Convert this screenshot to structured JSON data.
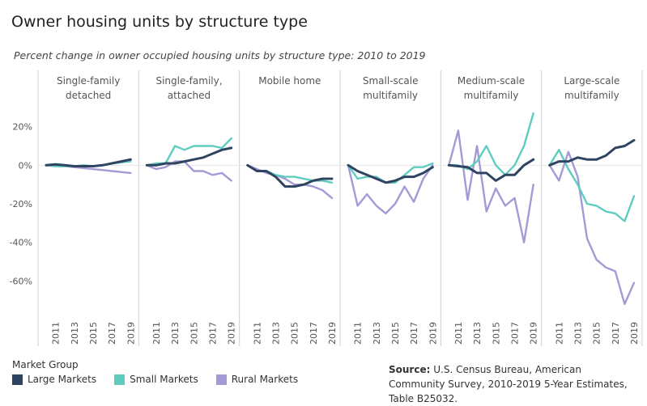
{
  "title": "Owner housing units by structure type",
  "subtitle": "Percent change in owner occupied housing units by structure type: 2010 to 2019",
  "legend": {
    "title": "Market Group",
    "items": [
      {
        "label": "Large Markets",
        "color": "#2e4460"
      },
      {
        "label": "Small Markets",
        "color": "#5ecdc0"
      },
      {
        "label": "Rural Markets",
        "color": "#a59ad6"
      }
    ]
  },
  "source": {
    "label": "Source:",
    "text": "U.S. Census Bureau, American Community Survey, 2010-2019 5-Year Estimates, Table B25032."
  },
  "chart_data": {
    "type": "line",
    "x": [
      2010,
      2011,
      2012,
      2013,
      2014,
      2015,
      2016,
      2017,
      2018,
      2019
    ],
    "x_tick_labels": [
      "2011",
      "2013",
      "2015",
      "2017",
      "2019"
    ],
    "y_ticks": [
      20,
      0,
      -20,
      -40,
      -60
    ],
    "y_tick_labels": [
      "20%",
      "0%",
      "-20%",
      "-40%",
      "-60%"
    ],
    "ylim": [
      -80,
      27
    ],
    "grid": false,
    "panels": [
      {
        "title_lines": [
          "Single-family",
          "detached"
        ],
        "series": [
          {
            "name": "Large Markets",
            "values": [
              0,
              0.5,
              0,
              -0.5,
              -0.5,
              -0.5,
              0,
              1,
              2,
              3
            ]
          },
          {
            "name": "Small Markets",
            "values": [
              0,
              -0.5,
              -0.5,
              -0.5,
              0,
              -0.5,
              0,
              1,
              1.5,
              2
            ]
          },
          {
            "name": "Rural Markets",
            "values": [
              0,
              -0.5,
              -0.5,
              -1,
              -1.5,
              -2,
              -2.5,
              -3,
              -3.5,
              -4
            ]
          }
        ]
      },
      {
        "title_lines": [
          "Single-family,",
          "attached"
        ],
        "series": [
          {
            "name": "Large Markets",
            "values": [
              0,
              0,
              1,
              1,
              2,
              3,
              4,
              6,
              8,
              9
            ]
          },
          {
            "name": "Small Markets",
            "values": [
              0,
              1,
              1,
              10,
              8,
              10,
              10,
              10,
              9,
              14
            ]
          },
          {
            "name": "Rural Markets",
            "values": [
              0,
              -2,
              -1,
              2,
              2,
              -3,
              -3,
              -5,
              -4,
              -8
            ]
          }
        ]
      },
      {
        "title_lines": [
          "Mobile home"
        ],
        "series": [
          {
            "name": "Large Markets",
            "values": [
              0,
              -3,
              -3,
              -6,
              -11,
              -11,
              -10,
              -8,
              -7,
              -7
            ]
          },
          {
            "name": "Small Markets",
            "values": [
              0,
              -3,
              -3,
              -5,
              -6,
              -6,
              -7,
              -8,
              -8,
              -9
            ]
          },
          {
            "name": "Rural Markets",
            "values": [
              0,
              -2,
              -4,
              -5,
              -7,
              -10,
              -10,
              -11,
              -13,
              -17
            ]
          }
        ]
      },
      {
        "title_lines": [
          "Small-scale",
          "multifamily"
        ],
        "series": [
          {
            "name": "Large Markets",
            "values": [
              0,
              -3,
              -5,
              -7,
              -9,
              -8,
              -6,
              -6,
              -4,
              -1
            ]
          },
          {
            "name": "Small Markets",
            "values": [
              0,
              -7,
              -6,
              -6,
              -9,
              -9,
              -5,
              -1,
              -1,
              1
            ]
          },
          {
            "name": "Rural Markets",
            "values": [
              0,
              -21,
              -15,
              -21,
              -25,
              -20,
              -11,
              -19,
              -7,
              0
            ]
          }
        ]
      },
      {
        "title_lines": [
          "Medium-scale",
          "multifamily"
        ],
        "series": [
          {
            "name": "Large Markets",
            "values": [
              0,
              -0.5,
              -1,
              -4,
              -4,
              -8,
              -5,
              -5,
              0,
              3
            ]
          },
          {
            "name": "Small Markets",
            "values": [
              0,
              0,
              -2,
              2,
              10,
              0,
              -5,
              0,
              10,
              27
            ]
          },
          {
            "name": "Rural Markets",
            "values": [
              0,
              18,
              -18,
              10,
              -24,
              -12,
              -21,
              -17,
              -40,
              -10
            ]
          }
        ]
      },
      {
        "title_lines": [
          "Large-scale",
          "multifamily"
        ],
        "series": [
          {
            "name": "Large Markets",
            "values": [
              0,
              2,
              2,
              4,
              3,
              3,
              5,
              9,
              10,
              13
            ]
          },
          {
            "name": "Small Markets",
            "values": [
              0,
              8,
              -2,
              -10,
              -20,
              -21,
              -24,
              -25,
              -29,
              -16
            ]
          },
          {
            "name": "Rural Markets",
            "values": [
              0,
              -8,
              7,
              -6,
              -38,
              -49,
              -53,
              -55,
              -72,
              -61
            ]
          }
        ]
      }
    ]
  }
}
